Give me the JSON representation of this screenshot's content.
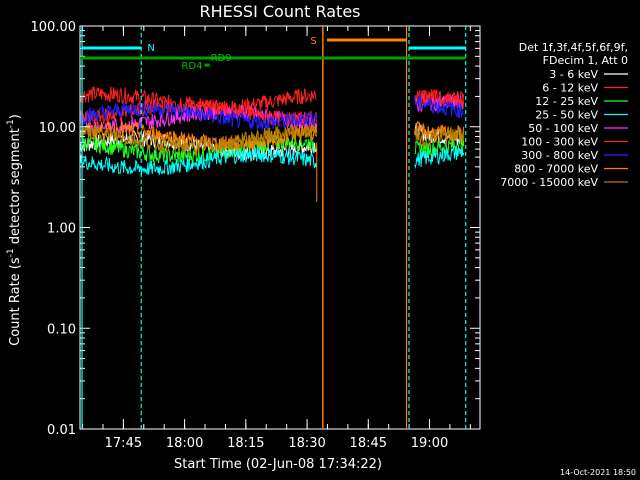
{
  "chart_data": {
    "type": "line",
    "title": "RHESSI Count Rates",
    "xlabel": "Start Time (02-Jun-08 17:34:22)",
    "ylabel_main": "Count Rate (s",
    "ylabel_sup": "-1",
    "ylabel_tail": " detector segment",
    "ylabel_sup2": "-1",
    "ylabel_end": ")",
    "yscale": "log",
    "ylim": [
      0.01,
      100
    ],
    "xlim_minutes": [
      0,
      98
    ],
    "x_ticks": [
      {
        "label": "17:45",
        "minute": 10.63
      },
      {
        "label": "18:00",
        "minute": 25.63
      },
      {
        "label": "18:15",
        "minute": 40.63
      },
      {
        "label": "18:30",
        "minute": 55.63
      },
      {
        "label": "18:45",
        "minute": 70.63
      },
      {
        "label": "19:00",
        "minute": 85.63
      }
    ],
    "y_ticks": [
      {
        "label": "100.00",
        "value": 100
      },
      {
        "label": "10.00",
        "value": 10
      },
      {
        "label": "1.00",
        "value": 1
      },
      {
        "label": "0.10",
        "value": 0.1
      },
      {
        "label": "0.01",
        "value": 0.01
      }
    ],
    "legend_header": [
      "Det 1f,3f,4f,5f,6f,9f,",
      "FDecim 1, Att 0"
    ],
    "series": [
      {
        "name": "3 - 6 keV",
        "color": "#ffffff",
        "segments": [
          [
            0,
            58,
            6.5
          ],
          [
            82,
            94,
            8.5
          ]
        ]
      },
      {
        "name": "6 - 12 keV",
        "color": "#ff2020",
        "segments": [
          [
            0,
            58,
            18
          ],
          [
            82,
            94,
            22
          ]
        ]
      },
      {
        "name": "12 - 25 keV",
        "color": "#20ff20",
        "segments": [
          [
            0,
            58,
            6.0
          ],
          [
            82,
            94,
            7.0
          ]
        ]
      },
      {
        "name": "25 - 50 keV",
        "color": "#00ffff",
        "segments": [
          [
            0,
            58,
            4.5
          ],
          [
            82,
            94,
            5.0
          ]
        ]
      },
      {
        "name": "50 - 100 keV",
        "color": "#ff30ff",
        "segments": [
          [
            0,
            58,
            12
          ],
          [
            82,
            94,
            15
          ]
        ]
      },
      {
        "name": "100 - 300 keV",
        "color": "#ff2020",
        "segments": [
          [
            0,
            58,
            14
          ],
          [
            82,
            94,
            17
          ]
        ]
      },
      {
        "name": "300 - 800 keV",
        "color": "#2020ff",
        "segments": [
          [
            0,
            58,
            13
          ],
          [
            82,
            94,
            16
          ]
        ]
      },
      {
        "name": "800 - 7000 keV",
        "color": "#ff8000",
        "segments": [
          [
            0,
            58,
            8.0
          ],
          [
            82,
            94,
            10
          ]
        ]
      },
      {
        "name": "7000 - 15000 keV",
        "color": "#b08000",
        "segments": [
          [
            0,
            58,
            7.5
          ],
          [
            82,
            94,
            9.0
          ]
        ]
      }
    ],
    "annotations": [
      {
        "label": "N",
        "color": "#00ffff"
      },
      {
        "label": "RD9",
        "color": "#00c000"
      },
      {
        "label": "RD4",
        "color": "#00c000"
      },
      {
        "label": "S",
        "color": "#ff8000"
      }
    ],
    "timestamp": "14-Oct-2021 18:50"
  }
}
